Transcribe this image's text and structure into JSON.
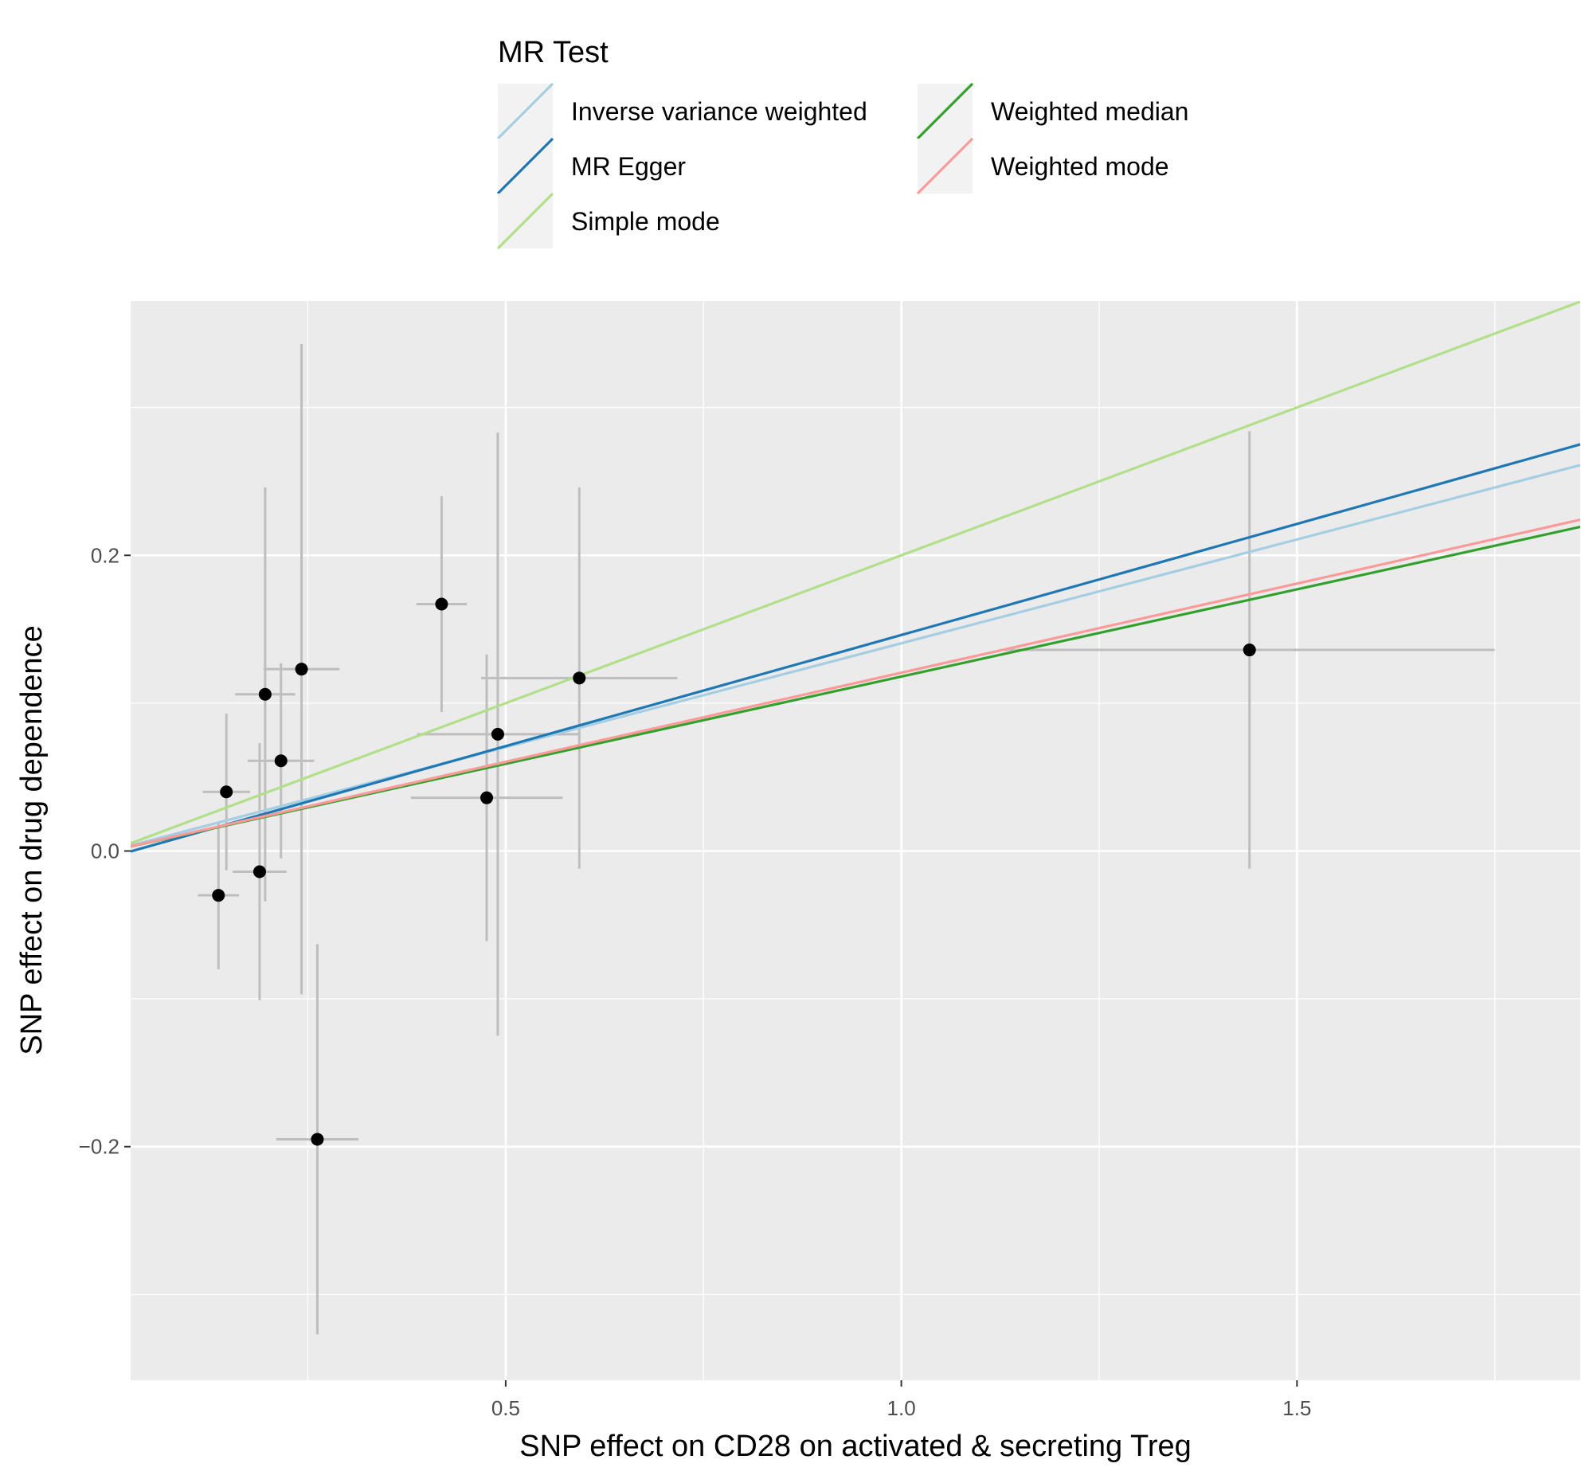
{
  "chart_data": {
    "type": "scatter",
    "xlabel": "SNP effect on CD28 on activated & secreting Treg",
    "ylabel": "SNP effect on drug dependence",
    "xlim": [
      0.026,
      1.858
    ],
    "ylim": [
      -0.358,
      0.372
    ],
    "x_ticks": [
      0.5,
      1.0,
      1.5
    ],
    "x_tick_labels": [
      "0.5",
      "1.0",
      "1.5"
    ],
    "y_ticks": [
      -0.2,
      0.0,
      0.2
    ],
    "y_tick_labels": [
      "−0.2",
      "0.0",
      "0.2"
    ],
    "legend": {
      "title": "MR Test",
      "position": "top",
      "entries": [
        {
          "name": "Inverse variance weighted",
          "color": "#a6cee3"
        },
        {
          "name": "MR Egger",
          "color": "#1f78b4"
        },
        {
          "name": "Simple mode",
          "color": "#b2df8a"
        },
        {
          "name": "Weighted median",
          "color": "#33a02c"
        },
        {
          "name": "Weighted mode",
          "color": "#fb9a99"
        }
      ]
    },
    "points": [
      {
        "x": 0.137,
        "y": -0.03,
        "x_err": 0.026,
        "y_err": 0.05
      },
      {
        "x": 0.147,
        "y": 0.04,
        "x_err": 0.03,
        "y_err": 0.053
      },
      {
        "x": 0.189,
        "y": -0.014,
        "x_err": 0.034,
        "y_err": 0.087
      },
      {
        "x": 0.196,
        "y": 0.106,
        "x_err": 0.038,
        "y_err": 0.14
      },
      {
        "x": 0.216,
        "y": 0.061,
        "x_err": 0.042,
        "y_err": 0.066
      },
      {
        "x": 0.242,
        "y": 0.123,
        "x_err": 0.048,
        "y_err": 0.22
      },
      {
        "x": 0.262,
        "y": -0.195,
        "x_err": 0.052,
        "y_err": 0.132
      },
      {
        "x": 0.419,
        "y": 0.167,
        "x_err": 0.032,
        "y_err": 0.073
      },
      {
        "x": 0.476,
        "y": 0.036,
        "x_err": 0.096,
        "y_err": 0.097
      },
      {
        "x": 0.49,
        "y": 0.079,
        "x_err": 0.102,
        "y_err": 0.204
      },
      {
        "x": 0.593,
        "y": 0.117,
        "x_err": 0.124,
        "y_err": 0.129
      },
      {
        "x": 1.44,
        "y": 0.136,
        "x_err": 0.31,
        "y_err": 0.148
      }
    ],
    "series": [
      {
        "name": "Inverse variance weighted",
        "color": "#a6cee3",
        "intercept": 0.0,
        "slope": 0.1405
      },
      {
        "name": "MR Egger",
        "color": "#1f78b4",
        "intercept": -0.0042,
        "slope": 0.1503
      },
      {
        "name": "Simple mode",
        "color": "#b2df8a",
        "intercept": 0.0,
        "slope": 0.2
      },
      {
        "name": "Weighted median",
        "color": "#33a02c",
        "intercept": 0.0,
        "slope": 0.118
      },
      {
        "name": "Weighted mode",
        "color": "#fb9a99",
        "intercept": 0.0,
        "slope": 0.1206
      }
    ],
    "panel_bg": "#ebebeb",
    "grid_color": "#ffffff",
    "errorbar_color": "#bebebe",
    "point_color": "#000000"
  }
}
